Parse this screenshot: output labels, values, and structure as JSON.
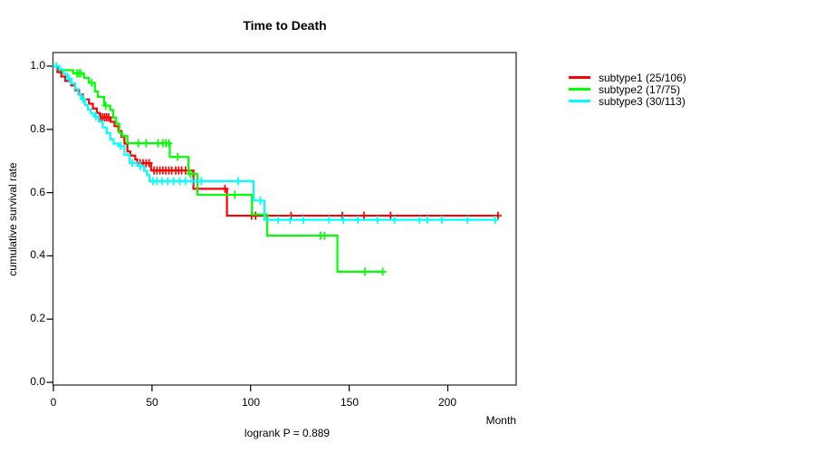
{
  "window": {
    "background": "#ffffff"
  },
  "chart": {
    "title": "Time to Death",
    "ylabel": "cumulative survival rate",
    "xlabel": "Month",
    "footer": "logrank P = 0.889"
  },
  "axes": {
    "xticks": [
      "0",
      "50",
      "100",
      "150",
      "200"
    ],
    "yticks": [
      "1.0",
      "0.8",
      "0.6",
      "0.4",
      "0.2",
      "0.0"
    ]
  },
  "legend": {
    "items": [
      {
        "label": "subtype1 (25/106)",
        "color": "#ff0000"
      },
      {
        "label": "subtype2 (17/75)",
        "color": "#00ff00"
      },
      {
        "label": "subtype3 (30/113)",
        "color": "#00ffff"
      }
    ]
  },
  "chart_data": {
    "type": "line",
    "subtype": "kaplan-meier-step",
    "title": "Time to Death",
    "xlabel": "Month",
    "ylabel": "cumulative survival rate",
    "annotation": "logrank P = 0.889",
    "xlim": [
      0,
      234
    ],
    "ylim": [
      0,
      1
    ],
    "xticks": [
      0,
      50,
      100,
      150,
      200
    ],
    "yticks": [
      0.0,
      0.2,
      0.4,
      0.6,
      0.8,
      1.0
    ],
    "grid": false,
    "legend_position": "right-outside",
    "series": [
      {
        "name": "subtype1 (25/106)",
        "events_over_n": "25/106",
        "color": "#ff0000",
        "end_time": 225.5,
        "steps": [
          [
            0,
            1.0
          ],
          [
            2,
            0.981
          ],
          [
            4,
            0.967
          ],
          [
            6,
            0.953
          ],
          [
            9,
            0.939
          ],
          [
            11,
            0.924
          ],
          [
            13,
            0.91
          ],
          [
            15,
            0.895
          ],
          [
            18,
            0.881
          ],
          [
            20,
            0.866
          ],
          [
            22,
            0.852
          ],
          [
            23.5,
            0.838
          ],
          [
            29,
            0.824
          ],
          [
            31,
            0.81
          ],
          [
            33,
            0.795
          ],
          [
            34.5,
            0.776
          ],
          [
            36,
            0.755
          ],
          [
            37.5,
            0.73
          ],
          [
            39,
            0.717
          ],
          [
            41.5,
            0.705
          ],
          [
            42.5,
            0.693
          ],
          [
            49.5,
            0.67
          ],
          [
            71,
            0.612
          ],
          [
            88,
            0.527
          ]
        ],
        "censors": [
          [
            24,
            0.838
          ],
          [
            25,
            0.838
          ],
          [
            26,
            0.838
          ],
          [
            27,
            0.838
          ],
          [
            28,
            0.838
          ],
          [
            44,
            0.693
          ],
          [
            45.5,
            0.693
          ],
          [
            47,
            0.693
          ],
          [
            48.5,
            0.693
          ],
          [
            51,
            0.67
          ],
          [
            52.5,
            0.67
          ],
          [
            54,
            0.67
          ],
          [
            55.5,
            0.67
          ],
          [
            57,
            0.67
          ],
          [
            58.5,
            0.67
          ],
          [
            60,
            0.67
          ],
          [
            62,
            0.67
          ],
          [
            63.5,
            0.67
          ],
          [
            65,
            0.67
          ],
          [
            67,
            0.67
          ],
          [
            87,
            0.612
          ],
          [
            100.5,
            0.527
          ],
          [
            102.5,
            0.527
          ],
          [
            120.5,
            0.527
          ],
          [
            146.5,
            0.527
          ],
          [
            157.5,
            0.527
          ],
          [
            171,
            0.527
          ],
          [
            225.5,
            0.527
          ]
        ]
      },
      {
        "name": "subtype2 (17/75)",
        "events_over_n": "17/75",
        "color": "#00ff00",
        "end_time": 167,
        "steps": [
          [
            0,
            1.0
          ],
          [
            3,
            0.987
          ],
          [
            10,
            0.977
          ],
          [
            15.5,
            0.963
          ],
          [
            18,
            0.947
          ],
          [
            21,
            0.92
          ],
          [
            22.5,
            0.903
          ],
          [
            25.7,
            0.875
          ],
          [
            28.8,
            0.861
          ],
          [
            30.3,
            0.837
          ],
          [
            31.8,
            0.818
          ],
          [
            33.4,
            0.789
          ],
          [
            34.9,
            0.779
          ],
          [
            37.5,
            0.756
          ],
          [
            59,
            0.713
          ],
          [
            68.5,
            0.659
          ],
          [
            73,
            0.593
          ],
          [
            100.7,
            0.531
          ],
          [
            108.4,
            0.464
          ],
          [
            144,
            0.35
          ]
        ],
        "censors": [
          [
            1.5,
            1.0
          ],
          [
            12,
            0.977
          ],
          [
            13,
            0.977
          ],
          [
            14,
            0.977
          ],
          [
            19.5,
            0.947
          ],
          [
            26.5,
            0.875
          ],
          [
            43,
            0.756
          ],
          [
            47,
            0.756
          ],
          [
            53,
            0.756
          ],
          [
            55.5,
            0.756
          ],
          [
            57,
            0.756
          ],
          [
            58.5,
            0.756
          ],
          [
            63,
            0.713
          ],
          [
            69.5,
            0.659
          ],
          [
            92,
            0.593
          ],
          [
            135.5,
            0.464
          ],
          [
            137.5,
            0.464
          ],
          [
            158,
            0.35
          ],
          [
            167,
            0.35
          ]
        ]
      },
      {
        "name": "subtype3 (30/113)",
        "events_over_n": "30/113",
        "color": "#00ffff",
        "end_time": 224,
        "steps": [
          [
            0,
            1.0
          ],
          [
            3,
            0.99
          ],
          [
            5,
            0.975
          ],
          [
            7,
            0.96
          ],
          [
            9,
            0.945
          ],
          [
            11,
            0.928
          ],
          [
            12.5,
            0.912
          ],
          [
            14,
            0.896
          ],
          [
            16,
            0.877
          ],
          [
            17.5,
            0.862
          ],
          [
            19,
            0.85
          ],
          [
            20.8,
            0.841
          ],
          [
            23,
            0.825
          ],
          [
            25,
            0.806
          ],
          [
            27,
            0.788
          ],
          [
            28.8,
            0.768
          ],
          [
            30.5,
            0.755
          ],
          [
            33,
            0.747
          ],
          [
            36,
            0.72
          ],
          [
            38.6,
            0.694
          ],
          [
            42.6,
            0.684
          ],
          [
            46,
            0.669
          ],
          [
            47.5,
            0.655
          ],
          [
            48.7,
            0.636
          ],
          [
            101.5,
            0.575
          ],
          [
            107,
            0.514
          ]
        ],
        "censors": [
          [
            1.5,
            1.0
          ],
          [
            8,
            0.96
          ],
          [
            15,
            0.896
          ],
          [
            21.5,
            0.841
          ],
          [
            34,
            0.747
          ],
          [
            40,
            0.694
          ],
          [
            44,
            0.684
          ],
          [
            50.5,
            0.636
          ],
          [
            52.5,
            0.636
          ],
          [
            55,
            0.636
          ],
          [
            58,
            0.636
          ],
          [
            61,
            0.636
          ],
          [
            64,
            0.636
          ],
          [
            67,
            0.636
          ],
          [
            70.5,
            0.636
          ],
          [
            75,
            0.636
          ],
          [
            93.7,
            0.636
          ],
          [
            105,
            0.575
          ],
          [
            114,
            0.514
          ],
          [
            120,
            0.514
          ],
          [
            126.8,
            0.514
          ],
          [
            139.8,
            0.514
          ],
          [
            147,
            0.514
          ],
          [
            154.4,
            0.514
          ],
          [
            164.3,
            0.514
          ],
          [
            173,
            0.514
          ],
          [
            185.7,
            0.514
          ],
          [
            189.6,
            0.514
          ],
          [
            197,
            0.514
          ],
          [
            210,
            0.514
          ],
          [
            224,
            0.514
          ]
        ]
      }
    ]
  }
}
